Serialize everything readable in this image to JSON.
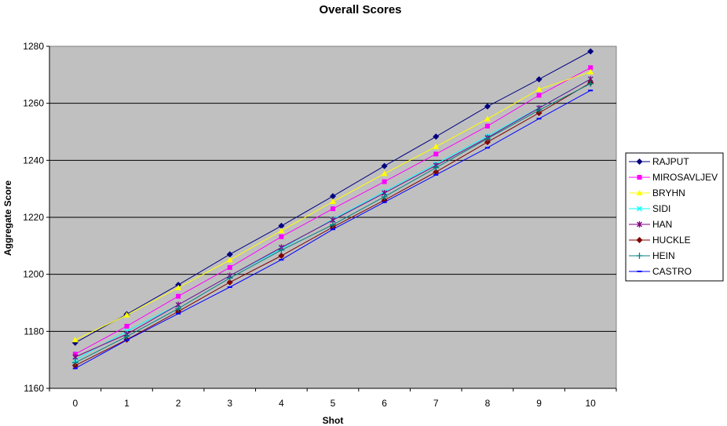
{
  "chart_data": {
    "type": "line",
    "title": "Overall Scores",
    "xlabel": "Shot",
    "ylabel": "Aggregate Score",
    "x": [
      0,
      1,
      2,
      3,
      4,
      5,
      6,
      7,
      8,
      9,
      10
    ],
    "xlim": [
      0,
      10
    ],
    "ylim": [
      1160,
      1280
    ],
    "yticks": [
      1160,
      1180,
      1200,
      1220,
      1240,
      1260,
      1280
    ],
    "grid": true,
    "legend_position": "right",
    "plot_background": "#c0c0c0",
    "series": [
      {
        "name": "RAJPUT",
        "color": "#000080",
        "marker": "diamond",
        "values": [
          1176.0,
          1186.0,
          1196.3,
          1207.0,
          1217.0,
          1227.4,
          1238.0,
          1248.3,
          1258.9,
          1268.4,
          1278.2
        ]
      },
      {
        "name": "MIROSAVLJEV",
        "color": "#ff00ff",
        "marker": "square",
        "values": [
          1172.0,
          1181.8,
          1192.3,
          1202.4,
          1213.2,
          1223.0,
          1232.5,
          1242.2,
          1252.0,
          1262.8,
          1272.5
        ]
      },
      {
        "name": "BRYHN",
        "color": "#ffff00",
        "marker": "triangle",
        "values": [
          1177.0,
          1185.7,
          1195.3,
          1205.0,
          1215.3,
          1225.5,
          1235.3,
          1244.8,
          1254.5,
          1264.9,
          1271.0
        ]
      },
      {
        "name": "SIDI",
        "color": "#00ffff",
        "marker": "x",
        "values": [
          1170.0,
          1180.0,
          1189.3,
          1199.5,
          1209.0,
          1219.3,
          1229.0,
          1238.7,
          1248.5,
          1258.4,
          1268.6
        ]
      },
      {
        "name": "HAN",
        "color": "#800080",
        "marker": "star",
        "values": [
          1171.0,
          1179.0,
          1189.3,
          1199.5,
          1209.4,
          1219.0,
          1228.5,
          1238.2,
          1247.9,
          1258.3,
          1268.5
        ]
      },
      {
        "name": "HUCKLE",
        "color": "#800000",
        "marker": "circle",
        "values": [
          1168.0,
          1177.1,
          1187.0,
          1197.2,
          1206.5,
          1216.6,
          1226.0,
          1235.9,
          1246.4,
          1256.6,
          1267.2
        ]
      },
      {
        "name": "HEIN",
        "color": "#008080",
        "marker": "plus",
        "values": [
          1169.0,
          1178.2,
          1188.0,
          1198.7,
          1208.5,
          1217.4,
          1227.2,
          1237.4,
          1247.6,
          1257.6,
          1266.9
        ]
      },
      {
        "name": "CASTRO",
        "color": "#0000ff",
        "marker": "dash",
        "values": [
          1167.0,
          1176.9,
          1186.2,
          1195.5,
          1205.1,
          1215.8,
          1225.3,
          1234.9,
          1244.4,
          1254.6,
          1264.5
        ]
      }
    ]
  }
}
